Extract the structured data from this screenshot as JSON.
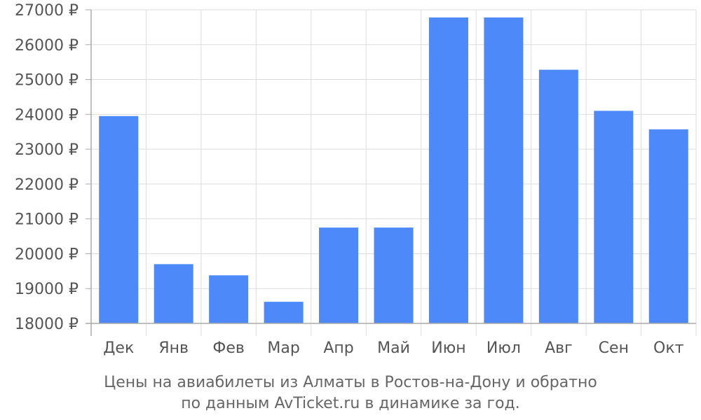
{
  "chart_data": {
    "type": "bar",
    "categories": [
      "Дек",
      "Янв",
      "Фев",
      "Мар",
      "Апр",
      "Май",
      "Июн",
      "Июл",
      "Авг",
      "Сен",
      "Окт"
    ],
    "values": [
      23950,
      19700,
      19380,
      18620,
      20750,
      20750,
      26780,
      26780,
      25280,
      24100,
      23570
    ],
    "ylim": [
      18000,
      27000
    ],
    "yticks": [
      18000,
      19000,
      20000,
      21000,
      22000,
      23000,
      24000,
      25000,
      26000,
      27000
    ],
    "y_tick_suffix": " ₽",
    "grid": true,
    "bar_color": "#4d89f9",
    "grid_color": "#dddddd",
    "axis_color": "#aaaaaa"
  },
  "caption": {
    "line1": "Цены на авиабилеты из Алматы в Ростов-на-Дону и обратно",
    "line2": "по данным AvTicket.ru в динамике за год."
  }
}
